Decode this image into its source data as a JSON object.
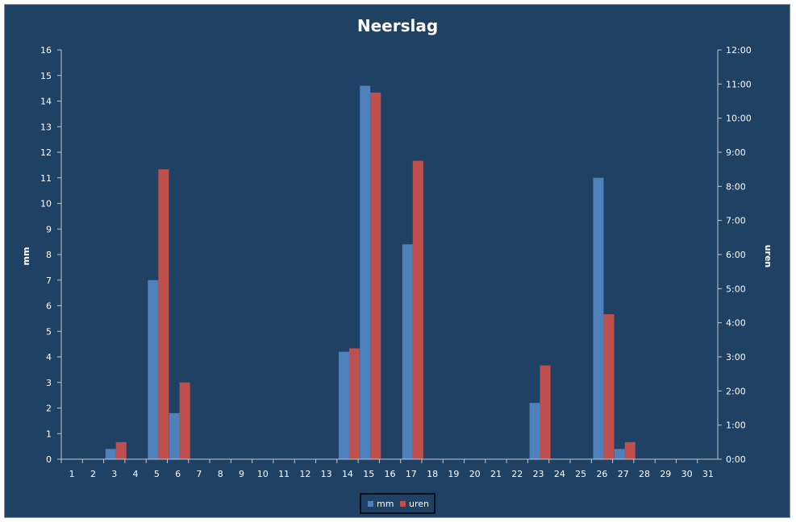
{
  "chart_data": {
    "type": "bar",
    "title": "Neerslag",
    "categories": [
      "1",
      "2",
      "3",
      "4",
      "5",
      "6",
      "7",
      "8",
      "9",
      "10",
      "11",
      "12",
      "13",
      "14",
      "15",
      "16",
      "17",
      "18",
      "19",
      "20",
      "21",
      "22",
      "23",
      "24",
      "25",
      "26",
      "27",
      "28",
      "29",
      "30",
      "31"
    ],
    "y_left": {
      "label": "mm",
      "ylim": [
        0,
        16
      ],
      "ticks": [
        "0",
        "1",
        "2",
        "3",
        "4",
        "5",
        "6",
        "7",
        "8",
        "9",
        "10",
        "11",
        "12",
        "13",
        "14",
        "15",
        "16"
      ]
    },
    "y_right": {
      "label": "uren",
      "ylim_hours": [
        0,
        12
      ],
      "ticks": [
        "0:00",
        "1:00",
        "2:00",
        "3:00",
        "4:00",
        "5:00",
        "6:00",
        "7:00",
        "8:00",
        "9:00",
        "10:00",
        "11:00",
        "12:00"
      ]
    },
    "series": [
      {
        "name": "mm",
        "axis": "left",
        "color": "#4f81bd",
        "values": [
          0,
          0,
          0.4,
          0,
          7,
          1.8,
          0,
          0,
          0,
          0,
          0,
          0,
          0,
          4.2,
          14.6,
          0,
          8.4,
          0,
          0,
          0,
          0,
          0,
          2.2,
          0,
          0,
          11,
          0.4,
          0,
          0,
          0,
          0
        ]
      },
      {
        "name": "uren",
        "axis": "right",
        "color": "#c0504d",
        "values": [
          0,
          0,
          0.5,
          0,
          8.5,
          2.25,
          0,
          0,
          0,
          0,
          0,
          0,
          0,
          3.25,
          10.75,
          0,
          8.75,
          0,
          0,
          0,
          0,
          0,
          2.75,
          0,
          0,
          4.25,
          0.5,
          0,
          0,
          0,
          0
        ]
      }
    ],
    "legend_position": "bottom",
    "grid": false,
    "colors": {
      "background": "#1f4164",
      "axis": "#bfc7d2",
      "text": "#ffffff"
    }
  }
}
